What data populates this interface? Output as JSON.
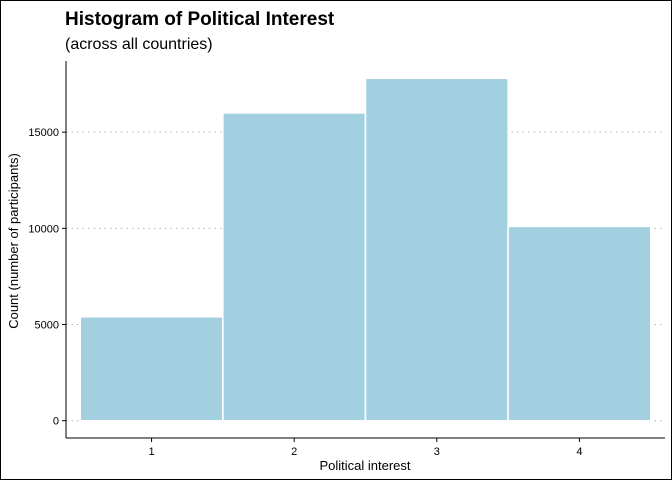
{
  "chart_data": {
    "type": "bar",
    "title": "Histogram of Political Interest",
    "subtitle": "(across all countries)",
    "xlabel": "Political interest",
    "ylabel": "Count (number of participants)",
    "categories": [
      "1",
      "2",
      "3",
      "4"
    ],
    "values": [
      5400,
      16000,
      17800,
      10100
    ],
    "yticks": [
      0,
      5000,
      10000,
      15000
    ],
    "ytick_labels": [
      "0",
      "5000",
      "10000",
      "15000"
    ],
    "ylim": [
      -900,
      18700
    ],
    "grid": "horizontal-dotted",
    "bar_color": "#a2d0e1",
    "bar_edge_color": "#ffffff",
    "grid_color": "#b3b3b3",
    "axis_color": "#000000"
  }
}
